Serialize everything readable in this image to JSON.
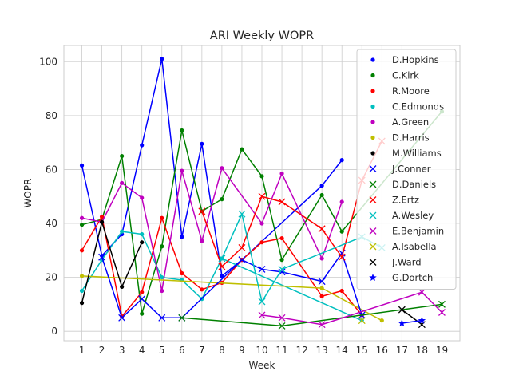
{
  "chart_data": {
    "type": "line",
    "title": "ARI Weekly WOPR",
    "xlabel": "Week",
    "ylabel": "WOPR",
    "xlim": [
      0.1,
      19.9
    ],
    "ylim": [
      -3.5,
      106
    ],
    "xticks": [
      1,
      2,
      3,
      4,
      5,
      6,
      7,
      8,
      9,
      10,
      11,
      12,
      13,
      14,
      15,
      16,
      17,
      18,
      19
    ],
    "yticks": [
      0,
      20,
      40,
      60,
      80,
      100
    ],
    "grid": true,
    "legend_position": "top-right",
    "series": [
      {
        "name": "D.Hopkins",
        "color": "#0000ff",
        "marker": "dot",
        "x": [
          1,
          2,
          3,
          4,
          5,
          6,
          7,
          8,
          9,
          13,
          14
        ],
        "y": [
          61.5,
          28,
          36,
          69,
          101,
          35,
          69.5,
          20.5,
          26.5,
          54,
          63.5
        ]
      },
      {
        "name": "C.Kirk",
        "color": "#008000",
        "marker": "dot",
        "x": [
          1,
          2,
          3,
          4,
          5,
          6,
          7,
          8,
          9,
          10,
          11,
          13,
          14,
          19
        ],
        "y": [
          39.5,
          41.5,
          65,
          6.5,
          31.5,
          74.5,
          44.5,
          49,
          67.5,
          57.5,
          26.5,
          50.5,
          37,
          81.5
        ]
      },
      {
        "name": "R.Moore",
        "color": "#ff0000",
        "marker": "dot",
        "x": [
          1,
          2,
          3,
          4,
          5,
          6,
          7,
          8,
          9,
          10,
          11,
          13,
          14,
          15
        ],
        "y": [
          30,
          42.5,
          5.5,
          14.5,
          42,
          21.5,
          15.5,
          18,
          26.5,
          33,
          34.5,
          13,
          15,
          6
        ]
      },
      {
        "name": "C.Edmonds",
        "color": "#00bfbf",
        "marker": "dot",
        "x": [
          1,
          2,
          3,
          4,
          5,
          6,
          7,
          8,
          15
        ],
        "y": [
          15,
          26.5,
          37,
          36,
          20,
          19,
          12,
          27,
          4
        ]
      },
      {
        "name": "A.Green",
        "color": "#bf00bf",
        "marker": "dot",
        "x": [
          1,
          2,
          3,
          4,
          5,
          6,
          7,
          8,
          10,
          11,
          13,
          14
        ],
        "y": [
          42,
          40.5,
          55,
          49.5,
          15,
          59.5,
          33.5,
          60.5,
          40,
          58.5,
          27,
          48
        ]
      },
      {
        "name": "D.Harris",
        "color": "#bfbf00",
        "marker": "dot",
        "x": [
          1,
          13,
          16
        ],
        "y": [
          20.5,
          16,
          4
        ]
      },
      {
        "name": "M.Williams",
        "color": "#000000",
        "marker": "dot",
        "x": [
          1,
          2,
          3,
          4
        ],
        "y": [
          10.5,
          40.5,
          16.5,
          33
        ]
      },
      {
        "name": "J.Conner",
        "color": "#0000ff",
        "marker": "x",
        "x": [
          2,
          3,
          4,
          5,
          6,
          9,
          10,
          11,
          13,
          14,
          15
        ],
        "y": [
          27.5,
          5,
          12,
          5,
          5,
          26.5,
          23,
          22,
          18.5,
          29,
          6
        ]
      },
      {
        "name": "D.Daniels",
        "color": "#008000",
        "marker": "x",
        "x": [
          6,
          11,
          19
        ],
        "y": [
          5,
          2,
          10
        ]
      },
      {
        "name": "Z.Ertz",
        "color": "#ff0000",
        "marker": "x",
        "x": [
          7,
          8,
          9,
          10,
          11,
          13,
          14,
          15,
          16
        ],
        "y": [
          44.5,
          24,
          31,
          50,
          48,
          38,
          27.5,
          56,
          70.5
        ]
      },
      {
        "name": "A.Wesley",
        "color": "#00bfbf",
        "marker": "x",
        "x": [
          8,
          9,
          10,
          11,
          15,
          16
        ],
        "y": [
          27,
          43.5,
          11,
          23,
          35,
          31
        ]
      },
      {
        "name": "E.Benjamin",
        "color": "#bf00bf",
        "marker": "x",
        "x": [
          10,
          11,
          13,
          18,
          19
        ],
        "y": [
          6,
          5,
          2.5,
          14.5,
          7
        ]
      },
      {
        "name": "A.Isabella",
        "color": "#bfbf00",
        "marker": "x",
        "x": [
          15
        ],
        "y": [
          4
        ]
      },
      {
        "name": "J.Ward",
        "color": "#000000",
        "marker": "x",
        "x": [
          17,
          18
        ],
        "y": [
          8,
          2.5
        ]
      },
      {
        "name": "G.Dortch",
        "color": "#0000ff",
        "marker": "star",
        "x": [
          17,
          18
        ],
        "y": [
          3,
          4
        ]
      }
    ]
  }
}
